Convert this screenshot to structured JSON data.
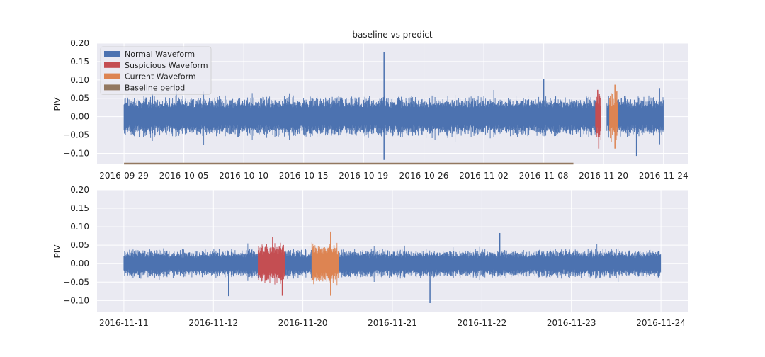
{
  "chart_data": [
    {
      "type": "line",
      "title": "baseline vs predict",
      "xlabel": "",
      "ylabel": "PIV",
      "ylim": [
        -0.13,
        0.2
      ],
      "yticks": [
        0.2,
        0.15,
        0.1,
        0.05,
        0.0,
        -0.05,
        -0.1
      ],
      "ytick_labels": [
        "0.20",
        "0.15",
        "0.10",
        "0.05",
        "0.00",
        "−0.05",
        "−0.10"
      ],
      "xlim": [
        -0.05,
        1.045
      ],
      "xtick_positions": [
        0.0,
        0.111,
        0.222,
        0.333,
        0.444,
        0.556,
        0.667,
        0.778,
        0.889,
        1.0
      ],
      "xtick_labels": [
        "2016-09-29",
        "2016-10-05",
        "2016-10-10",
        "2016-10-15",
        "2016-10-19",
        "2016-10-26",
        "2016-11-02",
        "2016-11-08",
        "2016-11-20",
        "2016-11-24"
      ],
      "grid": true,
      "legend_position": "top-left",
      "legend": [
        {
          "label": "Normal Waveform",
          "color": "#4c72b0"
        },
        {
          "label": "Suspicious Waveform",
          "color": "#c44e52"
        },
        {
          "label": "Current Waveform",
          "color": "#dd8452"
        },
        {
          "label": "Baseline period",
          "color": "#937860"
        }
      ],
      "series": [
        {
          "role": "normal",
          "color": "#4c72b0",
          "segments": [
            [
              0.0,
              0.874
            ],
            [
              0.895,
              0.9
            ],
            [
              0.915,
              1.0
            ]
          ],
          "amplitude": 0.05,
          "spikes": [
            {
              "x": 0.482,
              "y": 0.175
            },
            {
              "x": 0.482,
              "y": -0.118
            },
            {
              "x": 0.778,
              "y": 0.103
            },
            {
              "x": 0.95,
              "y": -0.107
            }
          ]
        },
        {
          "role": "suspicious",
          "color": "#c44e52",
          "segments": [
            [
              0.874,
              0.884
            ]
          ],
          "amplitude": 0.06,
          "spikes": [
            {
              "x": 0.878,
              "y": 0.073
            },
            {
              "x": 0.88,
              "y": -0.087
            }
          ]
        },
        {
          "role": "current",
          "color": "#dd8452",
          "segments": [
            [
              0.9,
              0.915
            ]
          ],
          "amplitude": 0.06,
          "spikes": [
            {
              "x": 0.91,
              "y": 0.087
            },
            {
              "x": 0.91,
              "y": -0.087
            }
          ]
        }
      ],
      "baseline_period": {
        "x": [
          0.0,
          0.833
        ],
        "y": -0.13,
        "color": "#937860"
      }
    },
    {
      "type": "line",
      "title": "",
      "xlabel": "",
      "ylabel": "PIV",
      "ylim": [
        -0.13,
        0.2
      ],
      "yticks": [
        0.2,
        0.15,
        0.1,
        0.05,
        0.0,
        -0.05,
        -0.1
      ],
      "ytick_labels": [
        "0.20",
        "0.15",
        "0.10",
        "0.05",
        "0.00",
        "−0.05",
        "−0.10"
      ],
      "xlim": [
        -0.05,
        1.05
      ],
      "xtick_positions": [
        0.0,
        0.1667,
        0.3333,
        0.5,
        0.6667,
        0.8333,
        1.0
      ],
      "xtick_labels": [
        "2016-11-11",
        "2016-11-12",
        "2016-11-20",
        "2016-11-21",
        "2016-11-22",
        "2016-11-23",
        "2016-11-24"
      ],
      "grid": true,
      "series": [
        {
          "role": "normal",
          "color": "#4c72b0",
          "segments": [
            [
              0.0,
              0.25
            ],
            [
              0.3,
              0.35
            ],
            [
              0.4,
              1.0
            ]
          ],
          "amplitude": 0.035,
          "spikes": [
            {
              "x": 0.195,
              "y": -0.088
            },
            {
              "x": 0.57,
              "y": -0.107
            },
            {
              "x": 0.7,
              "y": 0.083
            }
          ]
        },
        {
          "role": "suspicious",
          "color": "#c44e52",
          "segments": [
            [
              0.25,
              0.3
            ]
          ],
          "amplitude": 0.05,
          "spikes": [
            {
              "x": 0.277,
              "y": 0.073
            },
            {
              "x": 0.295,
              "y": -0.087
            }
          ]
        },
        {
          "role": "current",
          "color": "#dd8452",
          "segments": [
            [
              0.35,
              0.4
            ]
          ],
          "amplitude": 0.05,
          "spikes": [
            {
              "x": 0.385,
              "y": 0.087
            },
            {
              "x": 0.385,
              "y": -0.087
            }
          ]
        }
      ]
    }
  ]
}
